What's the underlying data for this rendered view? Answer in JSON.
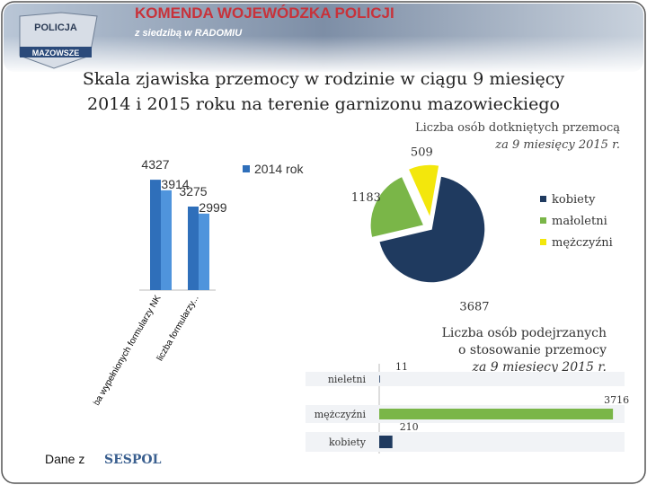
{
  "slide": {
    "banner": "KOMENDA WOJEWÓDZKA POLICJI",
    "banner_sub": "z siedzibą w RADOMIU",
    "badge_top": "POLICJA",
    "badge_bottom": "MAZOWSZE",
    "title_lines": [
      "Skala zjawiska przemocy w rodzinie w ciągu 9 miesięcy",
      "2014 i 2015 roku na terenie garnizonu mazowieckiego"
    ],
    "source_prefix": "Dane z",
    "source": "SESPOL"
  },
  "chart_data": [
    {
      "type": "bar",
      "categories": [
        "Liczba wypełnionych formularzy NK",
        "liczba formularzy..."
      ],
      "series": [
        {
          "name": "2014 rok",
          "color": "#2f6fba",
          "values": [
            4327,
            3275
          ]
        },
        {
          "color": "#4f94dc",
          "values": [
            3914,
            2999
          ]
        }
      ],
      "ylim": [
        0,
        5000
      ]
    },
    {
      "type": "pie",
      "title": "Liczba osób dotkniętych przemocą",
      "subtitle": "za 9 miesięcy 2015 r.",
      "categories": [
        "kobiety",
        "małoletni",
        "mężczyźni"
      ],
      "values": [
        3687,
        1183,
        509
      ],
      "colors": [
        "#1f3a5f",
        "#7ab648",
        "#f3e70c"
      ]
    },
    {
      "type": "hbar",
      "title_lines": [
        "Liczba osób podejrzanych",
        "o stosowanie przemocy"
      ],
      "subtitle": "za 9 miesięcy 2015 r.",
      "categories": [
        "nieletni",
        "mężczyźni",
        "kobiety"
      ],
      "values": [
        11,
        3716,
        210
      ],
      "colors": [
        "#1f3a5f",
        "#7ab648",
        "#1f3a5f"
      ],
      "xlim": [
        0,
        3800
      ]
    }
  ]
}
